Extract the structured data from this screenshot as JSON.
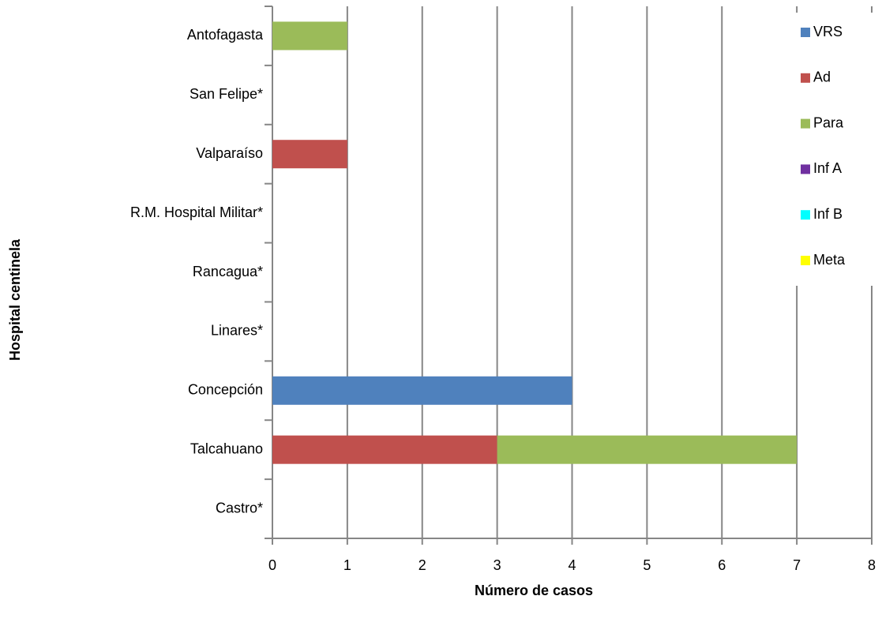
{
  "chart_data": {
    "type": "stacked-bar-horizontal",
    "x_label": "Número de casos",
    "y_label": "Hospital centinela",
    "categories": [
      "Antofagasta",
      "San Felipe*",
      "Valparaíso",
      "R.M. Hospital Militar*",
      "Rancagua*",
      "Linares*",
      "Concepción",
      "Talcahuano",
      "Castro*"
    ],
    "series": [
      {
        "name": "VRS",
        "color": "#4f81bd",
        "values": [
          0,
          0,
          0,
          0,
          0,
          0,
          4,
          0,
          0
        ]
      },
      {
        "name": "Ad",
        "color": "#c0504d",
        "values": [
          0,
          0,
          1,
          0,
          0,
          0,
          0,
          3,
          0
        ]
      },
      {
        "name": "Para",
        "color": "#9bbb59",
        "values": [
          1,
          0,
          0,
          0,
          0,
          0,
          0,
          4,
          0
        ]
      },
      {
        "name": "Inf A",
        "color": "#7030a0",
        "values": [
          0,
          0,
          0,
          0,
          0,
          0,
          0,
          0,
          0
        ]
      },
      {
        "name": "Inf B",
        "color": "#00ffff",
        "values": [
          0,
          0,
          0,
          0,
          0,
          0,
          0,
          0,
          0
        ]
      },
      {
        "name": "Meta",
        "color": "#ffff00",
        "values": [
          0,
          0,
          0,
          0,
          0,
          0,
          0,
          0,
          0
        ]
      }
    ],
    "xlim": [
      0,
      8
    ],
    "xticks": [
      0,
      1,
      2,
      3,
      4,
      5,
      6,
      7,
      8
    ],
    "grid": true,
    "legend": "right"
  }
}
